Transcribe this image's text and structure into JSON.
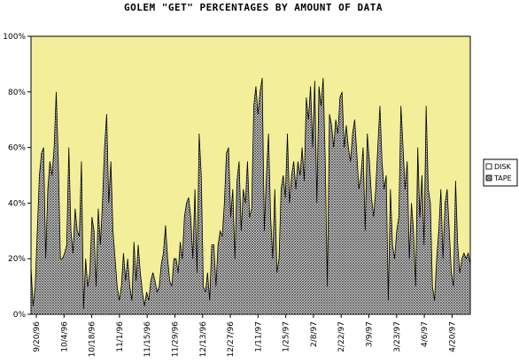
{
  "chart_data": {
    "type": "area",
    "title": "GOLEM \"GET\" PERCENTAGES BY AMOUNT OF DATA",
    "xlabel": "",
    "ylabel": "",
    "ylim": [
      0,
      100
    ],
    "y_ticks": [
      "0%",
      "20%",
      "40%",
      "60%",
      "80%",
      "100%"
    ],
    "x_tick_labels": [
      "9/20/96",
      "10/4/96",
      "10/18/96",
      "11/1/96",
      "11/15/96",
      "11/29/96",
      "12/13/96",
      "12/27/96",
      "1/11/97",
      "1/25/97",
      "2/8/97",
      "2/22/97",
      "3/9/97",
      "3/23/97",
      "4/6/97",
      "4/20/97"
    ],
    "stacked": true,
    "plot_background": "#f2ee9a",
    "series": [
      {
        "name": "DISK",
        "color": "#f2ee9a",
        "pattern": "plain"
      },
      {
        "name": "TAPE",
        "color": "#888888",
        "pattern": "crosshatch",
        "values": [
          17,
          3,
          10,
          30,
          50,
          58,
          60,
          20,
          45,
          55,
          50,
          60,
          80,
          55,
          20,
          20,
          22,
          25,
          60,
          30,
          22,
          38,
          30,
          28,
          55,
          2,
          20,
          10,
          15,
          35,
          30,
          10,
          38,
          25,
          40,
          60,
          72,
          40,
          55,
          30,
          20,
          10,
          5,
          10,
          22,
          12,
          20,
          10,
          5,
          26,
          12,
          25,
          15,
          8,
          3,
          8,
          5,
          12,
          15,
          12,
          8,
          10,
          18,
          22,
          32,
          20,
          12,
          10,
          20,
          20,
          15,
          26,
          20,
          35,
          40,
          42,
          35,
          20,
          45,
          15,
          65,
          50,
          10,
          8,
          15,
          5,
          25,
          25,
          10,
          25,
          30,
          28,
          40,
          58,
          60,
          35,
          45,
          20,
          48,
          55,
          30,
          45,
          40,
          55,
          35,
          38,
          75,
          82,
          72,
          80,
          85,
          30,
          50,
          65,
          35,
          20,
          45,
          15,
          20,
          45,
          50,
          42,
          65,
          40,
          50,
          55,
          45,
          55,
          50,
          60,
          48,
          78,
          70,
          82,
          60,
          84,
          40,
          82,
          75,
          85,
          55,
          10,
          72,
          68,
          60,
          70,
          65,
          78,
          80,
          60,
          68,
          60,
          55,
          65,
          70,
          58,
          45,
          50,
          60,
          30,
          65,
          55,
          42,
          35,
          45,
          60,
          75,
          55,
          45,
          50,
          5,
          45,
          25,
          20,
          30,
          35,
          75,
          60,
          45,
          55,
          20,
          40,
          30,
          10,
          60,
          35,
          50,
          25,
          75,
          45,
          40,
          10,
          5,
          20,
          30,
          45,
          20,
          40,
          45,
          30,
          15,
          10,
          48,
          25,
          15,
          20,
          22,
          20,
          22,
          18
        ]
      }
    ],
    "legend_placement": "right"
  }
}
